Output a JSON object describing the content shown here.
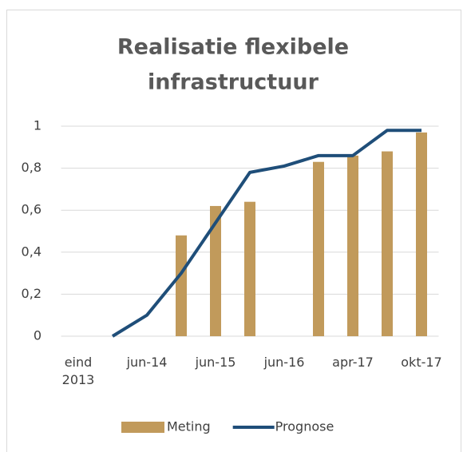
{
  "chart_data": {
    "type": "bar+line",
    "title": [
      "Realisatie flexibele",
      "infrastructuur"
    ],
    "categories": [
      "eind 2013",
      null,
      "jun-14",
      null,
      "jun-15",
      null,
      "jun-16",
      null,
      "apr-17",
      null,
      "okt-17"
    ],
    "series": [
      {
        "name": "Meting",
        "type": "bar",
        "color": "#c19a5b",
        "values": [
          null,
          null,
          null,
          0.48,
          0.62,
          0.64,
          null,
          0.83,
          0.86,
          0.88,
          0.97
        ]
      },
      {
        "name": "Prognose",
        "type": "line",
        "color": "#1f4e79",
        "values": [
          null,
          0,
          0.1,
          0.3,
          0.54,
          0.78,
          0.81,
          0.86,
          0.86,
          0.98,
          0.98
        ]
      }
    ],
    "ylim": [
      0,
      1
    ],
    "yticks": [
      0,
      {
        "value": 0.2,
        "label": "0,2"
      },
      {
        "value": 0.4,
        "label": "0,4"
      },
      {
        "value": 0.6,
        "label": "0,6"
      },
      {
        "value": 0.8,
        "label": "0,8"
      },
      1
    ],
    "grid": true,
    "legend": "bottom"
  }
}
